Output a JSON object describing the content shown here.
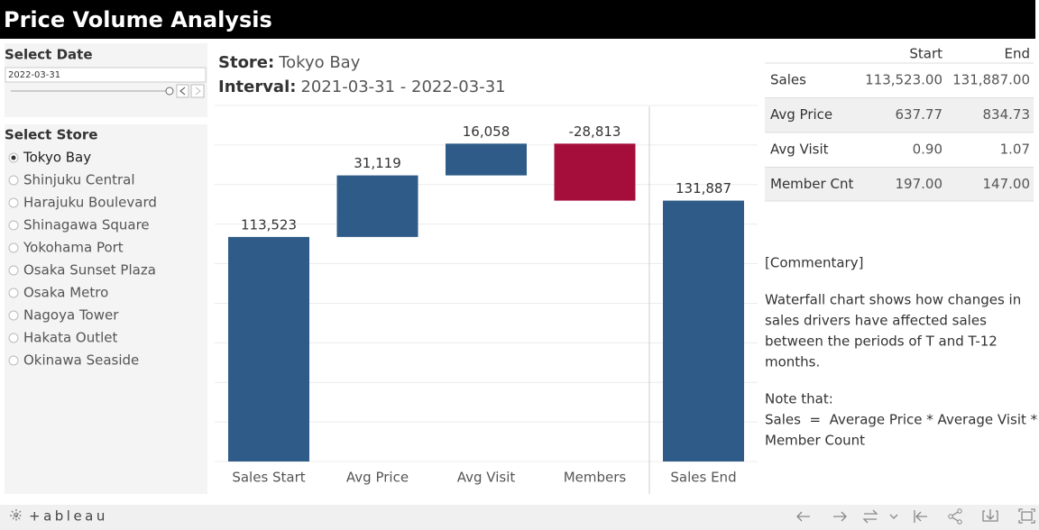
{
  "header": {
    "title": "Price Volume Analysis"
  },
  "date_filter": {
    "title": "Select Date",
    "value": "2022-03-31"
  },
  "store_filter": {
    "title": "Select Store",
    "options": [
      "Tokyo Bay",
      "Shinjuku Central",
      "Harajuku Boulevard",
      "Shinagawa Square",
      "Yokohama Port",
      "Osaka Sunset Plaza",
      "Osaka Metro",
      "Nagoya Tower",
      "Hakata Outlet",
      "Okinawa Seaside"
    ],
    "selected": 0
  },
  "chart_data": {
    "type": "waterfall",
    "store_label": "Store:",
    "store": "Tokyo Bay",
    "interval_label": "Interval:",
    "interval": "2021-03-31 - 2022-03-31",
    "categories": [
      "Sales Start",
      "Avg Price",
      "Avg Visit",
      "Members",
      "Sales End"
    ],
    "values": [
      113523,
      31119,
      16058,
      -28813,
      131887
    ],
    "value_labels": [
      "113,523",
      "31,119",
      "16,058",
      "-28,813",
      "131,887"
    ],
    "totals": [
      true,
      false,
      false,
      false,
      true
    ],
    "color": "#2e5b87",
    "negative_color": "#a50e3a",
    "ylim": [
      0,
      180000
    ],
    "yticks": [
      0,
      20000,
      40000,
      60000,
      80000,
      100000,
      120000,
      140000,
      160000,
      180000
    ],
    "grid": true
  },
  "summary_table": {
    "columns": [
      "Start",
      "End"
    ],
    "rows": [
      [
        "Sales",
        "113,523.00",
        "131,887.00"
      ],
      [
        "Avg Price",
        "637.77",
        "834.73"
      ],
      [
        "Avg Visit",
        "0.90",
        "1.07"
      ],
      [
        "Member Cnt",
        "197.00",
        "147.00"
      ]
    ]
  },
  "commentary": {
    "heading": "[Commentary]",
    "paragraphs": [
      [
        "Waterfall chart shows how changes in",
        "sales drivers have affected sales",
        "between the periods of T and T-12",
        "months."
      ],
      [
        "Note that:",
        "Sales  =  Average Price * Average Visit *",
        "Member Count"
      ]
    ]
  },
  "footer": {
    "brand": "+ableau"
  }
}
